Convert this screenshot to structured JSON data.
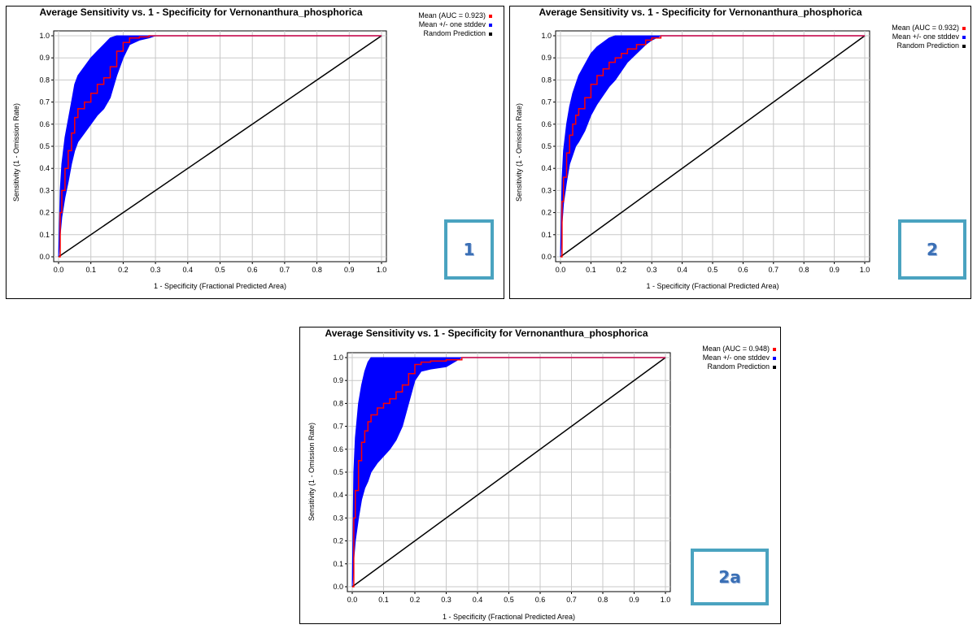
{
  "chart_data": [
    {
      "type": "line",
      "id": "1",
      "title": "Average Sensitivity vs. 1 - Specificity for Vernonanthura_phosphorica",
      "xlabel": "1 - Specificity (Fractional Predicted Area)",
      "ylabel": "Sensitivity (1 - Omission Rate)",
      "xlim": [
        0,
        1
      ],
      "ylim": [
        0,
        1
      ],
      "x_ticks": [
        "0.0",
        "0.1",
        "0.2",
        "0.3",
        "0.4",
        "0.5",
        "0.6",
        "0.7",
        "0.8",
        "0.9",
        "1.0"
      ],
      "y_ticks": [
        "0.0",
        "0.1",
        "0.2",
        "0.3",
        "0.4",
        "0.5",
        "0.6",
        "0.7",
        "0.8",
        "0.9",
        "1.0"
      ],
      "grid": true,
      "legend_position": "right",
      "badge": "1",
      "series": [
        {
          "name": "Mean (AUC = 0.923)",
          "color": "#ff0000",
          "x": [
            0,
            0.005,
            0.01,
            0.02,
            0.03,
            0.04,
            0.05,
            0.06,
            0.08,
            0.1,
            0.12,
            0.14,
            0.16,
            0.18,
            0.2,
            0.22,
            0.25,
            0.28,
            0.3,
            0.35,
            1.0
          ],
          "y": [
            0,
            0.2,
            0.3,
            0.4,
            0.48,
            0.56,
            0.63,
            0.67,
            0.7,
            0.74,
            0.78,
            0.81,
            0.86,
            0.93,
            0.97,
            0.99,
            0.995,
            1.0,
            1.0,
            1.0,
            1.0
          ]
        },
        {
          "name": "Mean +/- one stddev",
          "color": "#0000ff",
          "x": [
            0,
            0.005,
            0.01,
            0.02,
            0.03,
            0.04,
            0.05,
            0.06,
            0.08,
            0.1,
            0.12,
            0.14,
            0.16,
            0.18,
            0.2,
            0.22,
            0.25,
            0.28,
            0.3,
            0.35,
            1.0
          ],
          "upper": [
            0,
            0.3,
            0.42,
            0.54,
            0.62,
            0.7,
            0.78,
            0.82,
            0.86,
            0.9,
            0.93,
            0.96,
            0.99,
            1.0,
            1.0,
            1.0,
            1.0,
            1.0,
            1.0,
            1.0,
            1.0
          ],
          "lower": [
            0,
            0.1,
            0.18,
            0.27,
            0.34,
            0.42,
            0.48,
            0.52,
            0.56,
            0.6,
            0.64,
            0.67,
            0.72,
            0.82,
            0.9,
            0.96,
            0.98,
            0.99,
            1.0,
            1.0,
            1.0
          ]
        },
        {
          "name": "Random Prediction",
          "color": "#000000",
          "x": [
            0,
            1
          ],
          "y": [
            0,
            1
          ]
        }
      ]
    },
    {
      "type": "line",
      "id": "2",
      "title": "Average Sensitivity vs. 1 - Specificity for Vernonanthura_phosphorica",
      "xlabel": "1 - Specificity (Fractional Predicted Area)",
      "ylabel": "Sensitivity (1 - Omission Rate)",
      "xlim": [
        0,
        1
      ],
      "ylim": [
        0,
        1
      ],
      "x_ticks": [
        "0.0",
        "0.1",
        "0.2",
        "0.3",
        "0.4",
        "0.5",
        "0.6",
        "0.7",
        "0.8",
        "0.9",
        "1.0"
      ],
      "y_ticks": [
        "0.0",
        "0.1",
        "0.2",
        "0.3",
        "0.4",
        "0.5",
        "0.6",
        "0.7",
        "0.8",
        "0.9",
        "1.0"
      ],
      "grid": true,
      "legend_position": "right",
      "badge": "2",
      "series": [
        {
          "name": "Mean (AUC = 0.932)",
          "color": "#ff0000",
          "x": [
            0,
            0.005,
            0.01,
            0.02,
            0.03,
            0.04,
            0.05,
            0.06,
            0.08,
            0.1,
            0.12,
            0.14,
            0.16,
            0.18,
            0.2,
            0.22,
            0.25,
            0.28,
            0.3,
            0.33,
            1.0
          ],
          "y": [
            0,
            0.25,
            0.36,
            0.47,
            0.55,
            0.6,
            0.64,
            0.67,
            0.72,
            0.78,
            0.82,
            0.85,
            0.88,
            0.9,
            0.92,
            0.94,
            0.96,
            0.98,
            0.99,
            1.0,
            1.0
          ]
        },
        {
          "name": "Mean +/- one stddev",
          "color": "#0000ff",
          "x": [
            0,
            0.005,
            0.01,
            0.02,
            0.03,
            0.04,
            0.05,
            0.06,
            0.08,
            0.1,
            0.12,
            0.14,
            0.16,
            0.18,
            0.2,
            0.22,
            0.25,
            0.28,
            0.3,
            0.33,
            1.0
          ],
          "upper": [
            0,
            0.35,
            0.48,
            0.6,
            0.68,
            0.74,
            0.78,
            0.82,
            0.87,
            0.92,
            0.95,
            0.97,
            0.99,
            1.0,
            1.0,
            1.0,
            1.0,
            1.0,
            1.0,
            1.0,
            1.0
          ],
          "lower": [
            0,
            0.15,
            0.24,
            0.34,
            0.42,
            0.46,
            0.5,
            0.52,
            0.57,
            0.64,
            0.69,
            0.73,
            0.77,
            0.8,
            0.84,
            0.88,
            0.92,
            0.96,
            0.98,
            1.0,
            1.0
          ]
        },
        {
          "name": "Random Prediction",
          "color": "#000000",
          "x": [
            0,
            1
          ],
          "y": [
            0,
            1
          ]
        }
      ]
    },
    {
      "type": "line",
      "id": "2a",
      "title": "Average Sensitivity vs. 1 - Specificity for Vernonanthura_phosphorica",
      "xlabel": "1 - Specificity (Fractional Predicted Area)",
      "ylabel": "Sensitivity (1 - Omission Rate)",
      "xlim": [
        0,
        1
      ],
      "ylim": [
        0,
        1
      ],
      "x_ticks": [
        "0.0",
        "0.1",
        "0.2",
        "0.3",
        "0.4",
        "0.5",
        "0.6",
        "0.7",
        "0.8",
        "0.9",
        "1.0"
      ],
      "y_ticks": [
        "0.0",
        "0.1",
        "0.2",
        "0.3",
        "0.4",
        "0.5",
        "0.6",
        "0.7",
        "0.8",
        "0.9",
        "1.0"
      ],
      "grid": true,
      "legend_position": "right",
      "badge": "2a",
      "series": [
        {
          "name": "Mean (AUC = 0.948)",
          "color": "#ff0000",
          "x": [
            0,
            0.005,
            0.01,
            0.02,
            0.03,
            0.04,
            0.05,
            0.06,
            0.08,
            0.1,
            0.12,
            0.14,
            0.16,
            0.18,
            0.2,
            0.22,
            0.25,
            0.3,
            0.35,
            1.0
          ],
          "y": [
            0,
            0.3,
            0.42,
            0.55,
            0.63,
            0.68,
            0.72,
            0.75,
            0.78,
            0.8,
            0.82,
            0.85,
            0.88,
            0.93,
            0.97,
            0.98,
            0.985,
            0.99,
            1.0,
            1.0
          ]
        },
        {
          "name": "Mean +/- one stddev",
          "color": "#0000ff",
          "x": [
            0,
            0.005,
            0.01,
            0.02,
            0.03,
            0.04,
            0.05,
            0.06,
            0.08,
            0.1,
            0.12,
            0.14,
            0.16,
            0.18,
            0.2,
            0.22,
            0.25,
            0.3,
            0.35,
            1.0
          ],
          "upper": [
            0,
            0.5,
            0.65,
            0.8,
            0.88,
            0.94,
            0.98,
            1.0,
            1.0,
            1.0,
            1.0,
            1.0,
            1.0,
            1.0,
            1.0,
            1.0,
            1.0,
            1.0,
            1.0,
            1.0
          ],
          "lower": [
            0,
            0.12,
            0.2,
            0.3,
            0.38,
            0.43,
            0.46,
            0.5,
            0.54,
            0.57,
            0.6,
            0.64,
            0.7,
            0.8,
            0.9,
            0.94,
            0.95,
            0.96,
            1.0,
            1.0
          ]
        },
        {
          "name": "Random Prediction",
          "color": "#000000",
          "x": [
            0,
            1
          ],
          "y": [
            0,
            1
          ]
        }
      ]
    }
  ]
}
